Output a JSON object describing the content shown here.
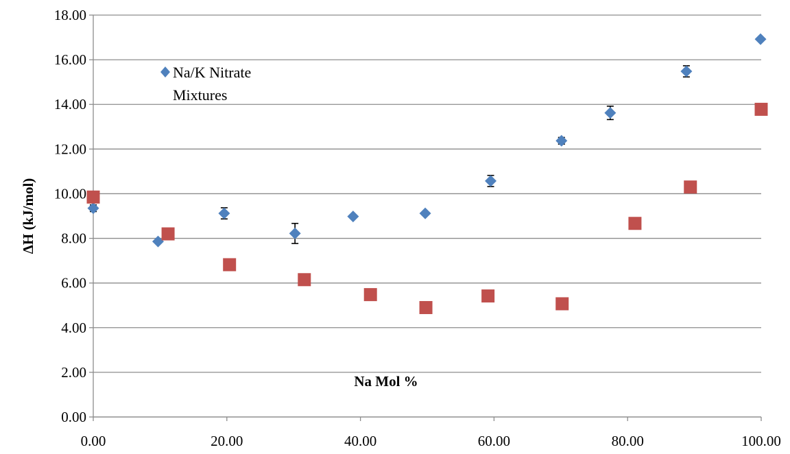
{
  "chart_data": {
    "type": "scatter",
    "title": "",
    "xlabel": "Na Mol %",
    "ylabel": "ΔH (kJ/mol)",
    "xlim": [
      0,
      100
    ],
    "ylim": [
      0,
      18
    ],
    "x_ticks": [
      "0.00",
      "20.00",
      "40.00",
      "60.00",
      "80.00",
      "100.00"
    ],
    "y_ticks": [
      "0.00",
      "2.00",
      "4.00",
      "6.00",
      "8.00",
      "10.00",
      "12.00",
      "14.00",
      "16.00",
      "18.00"
    ],
    "grid": "horizontal",
    "legend": {
      "placement": "top-left",
      "entries": [
        {
          "line1": "Na/K Nitrate",
          "line2": "Mixtures",
          "series_index": 0
        }
      ]
    },
    "series": [
      {
        "name": "Na/K Nitrate Mixtures",
        "marker": "diamond",
        "color": "#4f81bd",
        "points": [
          {
            "x": 0,
            "y": 9.35,
            "err": 0.15
          },
          {
            "x": 9.7,
            "y": 7.86,
            "err": 0
          },
          {
            "x": 19.6,
            "y": 9.12,
            "err": 0.25
          },
          {
            "x": 30.2,
            "y": 8.22,
            "err": 0.45
          },
          {
            "x": 38.9,
            "y": 8.98,
            "err": 0
          },
          {
            "x": 49.7,
            "y": 9.12,
            "err": 0
          },
          {
            "x": 59.5,
            "y": 10.57,
            "err": 0.25
          },
          {
            "x": 70.1,
            "y": 12.37,
            "err": 0.15
          },
          {
            "x": 77.4,
            "y": 13.62,
            "err": 0.3
          },
          {
            "x": 88.8,
            "y": 15.48,
            "err": 0.25
          },
          {
            "x": 99.9,
            "y": 16.92,
            "err": 0
          }
        ]
      },
      {
        "marker": "square",
        "color": "#c0504d",
        "points": [
          {
            "x": 0,
            "y": 9.85
          },
          {
            "x": 11.2,
            "y": 8.2
          },
          {
            "x": 20.4,
            "y": 6.82
          },
          {
            "x": 31.6,
            "y": 6.15
          },
          {
            "x": 41.5,
            "y": 5.48
          },
          {
            "x": 49.8,
            "y": 4.9
          },
          {
            "x": 59.1,
            "y": 5.42
          },
          {
            "x": 70.2,
            "y": 5.07
          },
          {
            "x": 81.1,
            "y": 8.67
          },
          {
            "x": 89.4,
            "y": 10.3
          },
          {
            "x": 100,
            "y": 13.78
          }
        ]
      }
    ]
  }
}
